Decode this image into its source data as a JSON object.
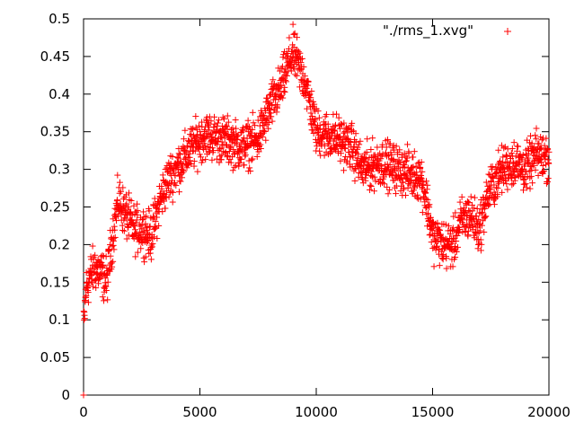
{
  "chart_data": {
    "type": "scatter",
    "title": "",
    "xlabel": "",
    "ylabel": "",
    "xlim": [
      0,
      20000
    ],
    "ylim": [
      0,
      0.5
    ],
    "xticks": [
      "0",
      "5000",
      "10000",
      "15000",
      "20000"
    ],
    "yticks": [
      "0",
      "0.05",
      "0.1",
      "0.15",
      "0.2",
      "0.25",
      "0.3",
      "0.35",
      "0.4",
      "0.45",
      "0.5"
    ],
    "grid": false,
    "legend_position": "top-right",
    "marker": "plus",
    "series": [
      {
        "name": "\"./rms_1.xvg\"",
        "color": "#ff0000",
        "trend_x": [
          0,
          100,
          300,
          500,
          800,
          1000,
          1200,
          1500,
          1800,
          2200,
          2600,
          2900,
          3300,
          3700,
          4200,
          4700,
          5200,
          6000,
          6800,
          7500,
          8000,
          8500,
          8800,
          9000,
          9200,
          9500,
          10000,
          11000,
          11500,
          12000,
          12800,
          13500,
          14500,
          14800,
          15000,
          15500,
          15900,
          16200,
          16600,
          17000,
          17400,
          18000,
          18500,
          19000,
          19500,
          20000
        ],
        "trend_y": [
          0.08,
          0.14,
          0.16,
          0.17,
          0.16,
          0.15,
          0.2,
          0.26,
          0.24,
          0.22,
          0.22,
          0.21,
          0.26,
          0.29,
          0.31,
          0.33,
          0.345,
          0.34,
          0.33,
          0.34,
          0.38,
          0.41,
          0.44,
          0.455,
          0.44,
          0.42,
          0.35,
          0.34,
          0.33,
          0.3,
          0.31,
          0.3,
          0.29,
          0.25,
          0.21,
          0.2,
          0.2,
          0.23,
          0.24,
          0.22,
          0.27,
          0.3,
          0.31,
          0.3,
          0.32,
          0.315
        ]
      }
    ]
  }
}
